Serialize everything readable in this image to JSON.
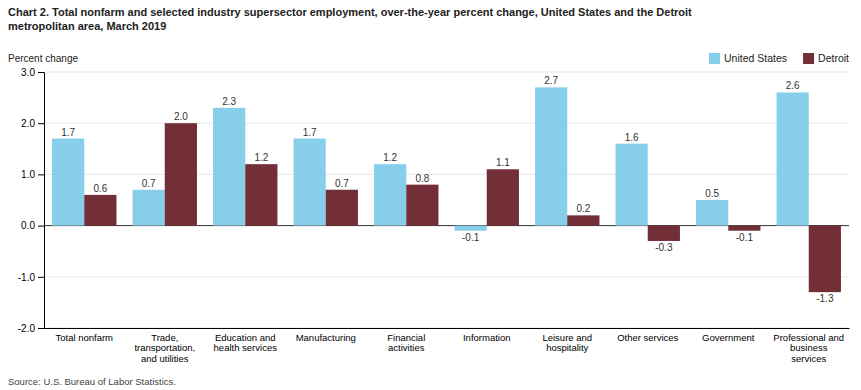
{
  "chart_data": {
    "type": "bar",
    "title": "Chart 2. Total nonfarm and selected industry  supersector  employment, over-the-year percent change, United States and the Detroit\nmetropolitan area, March 2019",
    "ylabel": "Percent change",
    "source": "Source: U.S. Bureau of Labor Statistics.",
    "categories": [
      "Total nonfarm",
      "Trade,\ntransportation,\nand utilities",
      "Education and\nhealth services",
      "Manufacturing",
      "Financial\nactivities",
      "Information",
      "Leisure and\nhospitality",
      "Other services",
      "Government",
      "Professional and\nbusiness\nservices"
    ],
    "series": [
      {
        "name": "United States",
        "color": "#87CEEB",
        "values": [
          1.7,
          0.7,
          2.3,
          1.7,
          1.2,
          -0.1,
          2.7,
          1.6,
          0.5,
          2.6
        ]
      },
      {
        "name": "Detroit",
        "color": "#722F37",
        "values": [
          0.6,
          2.0,
          1.2,
          0.7,
          0.8,
          1.1,
          0.2,
          -0.3,
          -0.1,
          -1.3
        ],
        "value_labels": [
          "0.6",
          "2.0",
          "1.2",
          "0.7",
          "0.8",
          "1.1",
          "0.2",
          "-0.3",
          "-0.1",
          "-1.3"
        ]
      }
    ],
    "ylim": [
      -2.0,
      3.0
    ],
    "yticks": [
      {
        "value": -2.0,
        "label": "-2.0"
      },
      {
        "value": -1.0,
        "label": "-1.0"
      },
      {
        "value": 0.0,
        "label": "0.0"
      },
      {
        "value": 1.0,
        "label": "1.0"
      },
      {
        "value": 2.0,
        "label": "2.0"
      },
      {
        "value": 3.0,
        "label": "3.0"
      }
    ],
    "grid": true,
    "legend": "top-right",
    "data_labels": true
  }
}
